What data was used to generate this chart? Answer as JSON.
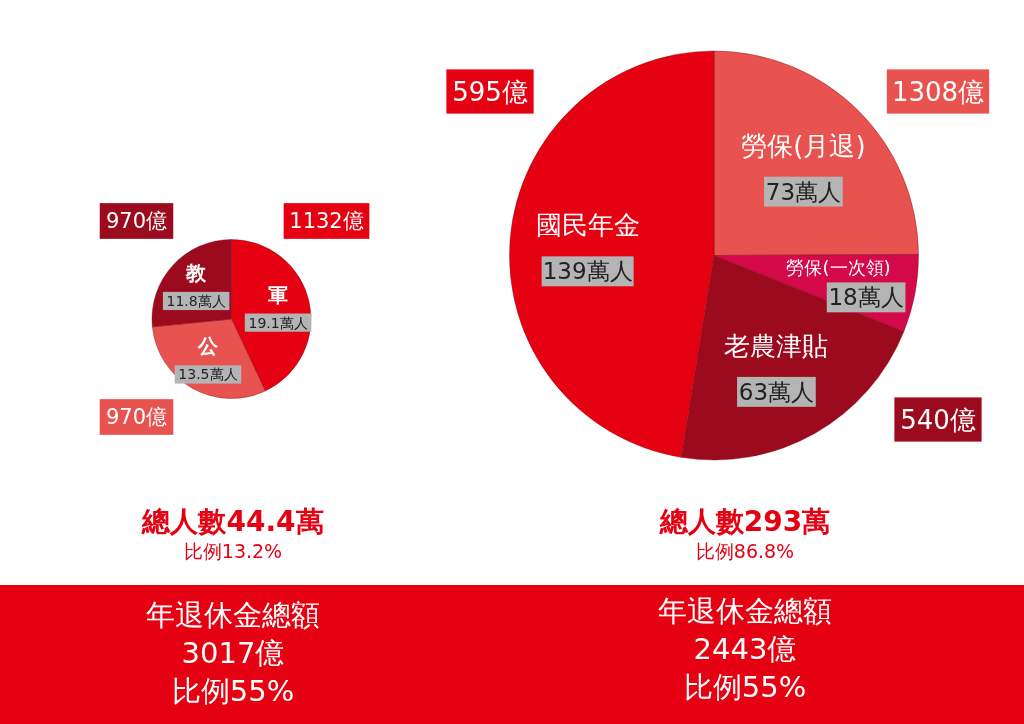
{
  "chart_data": [
    {
      "type": "pie",
      "title": "總人數44.4萬",
      "subtitle": "比例13.2%",
      "categories": [
        "軍",
        "公",
        "教"
      ],
      "values": [
        19.1,
        13.5,
        11.8
      ],
      "colors": [
        "#e50012",
        "#e8524f",
        "#9c0a1d"
      ],
      "value_labels": [
        "19.1萬人",
        "13.5萬人",
        "11.8萬人"
      ],
      "annotations": [
        {
          "text": "1132億",
          "x": "軍"
        },
        {
          "text": "970億",
          "x": "公"
        },
        {
          "text": "970億",
          "x": "教"
        },
        "年退休金總額",
        "3017億",
        "比例55%"
      ]
    },
    {
      "type": "pie",
      "title": "總人數293萬",
      "subtitle": "比例86.8%",
      "categories": [
        "勞保(月退)",
        "勞保(一次領)",
        "老農津貼",
        "國民年金"
      ],
      "values": [
        73,
        18,
        63,
        139
      ],
      "colors": [
        "#e8524f",
        "#d4094a",
        "#9c0a1d",
        "#e50012"
      ],
      "value_labels": [
        "73萬人",
        "18萬人",
        "63萬人",
        "139萬人"
      ],
      "annotations": [
        {
          "text": "1308億",
          "x": "勞保(月退)"
        },
        {
          "text": "540億",
          "x": "老農津貼"
        },
        {
          "text": "595億",
          "x": "國民年金"
        },
        "年退休金總額",
        "2443億",
        "比例55%"
      ]
    }
  ]
}
